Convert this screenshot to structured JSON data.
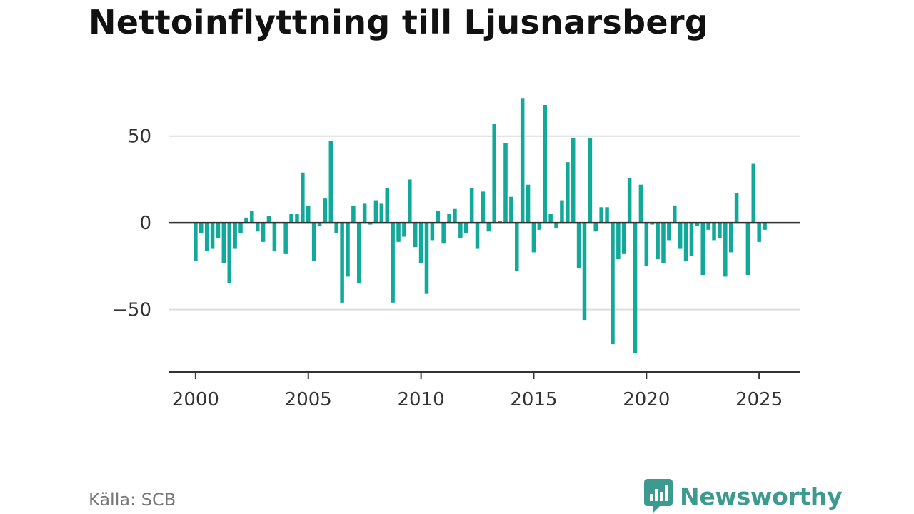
{
  "title": "Nettoinflyttning till Ljusnarsberg",
  "source": "Källa: SCB",
  "brand": {
    "name": "Newsworthy",
    "icon": "newsworthy-logo-icon",
    "color": "#3d9a8f"
  },
  "colors": {
    "bar": "#12a89a",
    "zero_line": "#333333",
    "grid": "#dddddd",
    "axis_text": "#333333"
  },
  "chart_data": {
    "type": "bar",
    "title": "Nettoinflyttning till Ljusnarsberg",
    "xlabel": "",
    "ylabel": "",
    "x_ticks": [
      "2000",
      "2005",
      "2010",
      "2015",
      "2020",
      "2025"
    ],
    "y_ticks": [
      50,
      0,
      -50
    ],
    "y_tick_labels": [
      "50",
      "0",
      "−50"
    ],
    "ylim": [
      -86,
      75
    ],
    "xlim": [
      1998.8,
      2026.8
    ],
    "grid": true,
    "legend": "none",
    "x": [
      2000.0,
      2000.25,
      2000.5,
      2000.75,
      2001.0,
      2001.25,
      2001.5,
      2001.75,
      2002.0,
      2002.25,
      2002.5,
      2002.75,
      2003.0,
      2003.25,
      2003.5,
      2003.75,
      2004.0,
      2004.25,
      2004.5,
      2004.75,
      2005.0,
      2005.25,
      2005.5,
      2005.75,
      2006.0,
      2006.25,
      2006.5,
      2006.75,
      2007.0,
      2007.25,
      2007.5,
      2007.75,
      2008.0,
      2008.25,
      2008.5,
      2008.75,
      2009.0,
      2009.25,
      2009.5,
      2009.75,
      2010.0,
      2010.25,
      2010.5,
      2010.75,
      2011.0,
      2011.25,
      2011.5,
      2011.75,
      2012.0,
      2012.25,
      2012.5,
      2012.75,
      2013.0,
      2013.25,
      2013.5,
      2013.75,
      2014.0,
      2014.25,
      2014.5,
      2014.75,
      2015.0,
      2015.25,
      2015.5,
      2015.75,
      2016.0,
      2016.25,
      2016.5,
      2016.75,
      2017.0,
      2017.25,
      2017.5,
      2017.75,
      2018.0,
      2018.25,
      2018.5,
      2018.75,
      2019.0,
      2019.25,
      2019.5,
      2019.75,
      2020.0,
      2020.25,
      2020.5,
      2020.75,
      2021.0,
      2021.25,
      2021.5,
      2021.75,
      2022.0,
      2022.25,
      2022.5,
      2022.75,
      2023.0,
      2023.25,
      2023.5,
      2023.75,
      2024.0,
      2024.25,
      2024.5,
      2024.75,
      2025.0,
      2025.25
    ],
    "values": [
      -22,
      -6,
      -16,
      -15,
      -9,
      -23,
      -35,
      -15,
      -6,
      3,
      7,
      -5,
      -11,
      4,
      -16,
      0,
      -18,
      5,
      5,
      29,
      10,
      -22,
      -2,
      14,
      47,
      -6,
      -46,
      -31,
      10,
      -35,
      11,
      -1,
      13,
      11,
      20,
      -46,
      -11,
      -8,
      25,
      -14,
      -23,
      -41,
      -10,
      7,
      -12,
      5,
      8,
      -9,
      -6,
      20,
      -15,
      18,
      -5,
      57,
      1,
      46,
      15,
      -28,
      72,
      22,
      -17,
      -4,
      68,
      5,
      -3,
      13,
      35,
      49,
      -26,
      -56,
      49,
      -5,
      9,
      9,
      -70,
      -21,
      -18,
      26,
      -75,
      22,
      -25,
      -1,
      -21,
      -23,
      -10,
      10,
      -15,
      -22,
      -19,
      -2,
      -30,
      -4,
      -10,
      -9,
      -31,
      -17,
      17,
      0,
      -30,
      34,
      -11,
      -4
    ]
  }
}
